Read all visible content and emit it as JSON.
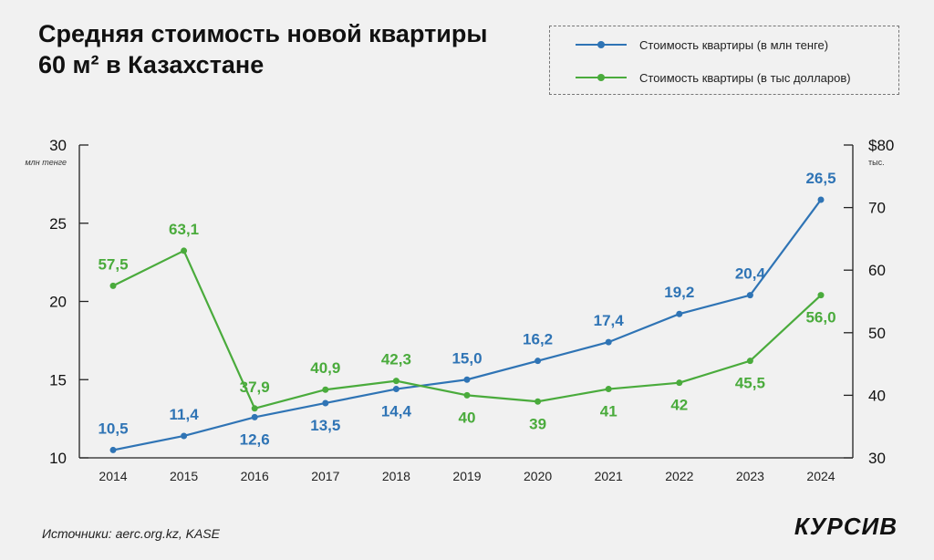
{
  "title": "Средняя стоимость новой квартиры 60 м² в Казахстане",
  "source": "Источники: aerc.org.kz, KASE",
  "logo": "КУРСИВ",
  "chart_data": {
    "type": "line",
    "title": "Средняя стоимость новой квартиры 60 м² в Казахстане",
    "categories": [
      "2014",
      "2015",
      "2016",
      "2017",
      "2018",
      "2019",
      "2020",
      "2021",
      "2022",
      "2023",
      "2024"
    ],
    "y_left": {
      "ylim": [
        10,
        30
      ],
      "ticks": [
        "10",
        "15",
        "20",
        "25",
        "30"
      ],
      "unit": "млн тенге"
    },
    "y_right": {
      "ylim": [
        30,
        80
      ],
      "ticks": [
        "30",
        "40",
        "50",
        "60",
        "70",
        "$80"
      ],
      "unit": "тыс."
    },
    "legend_placement": "top-right",
    "grid": false,
    "series": [
      {
        "name": "Стоимость квартиры (в млн тенге)",
        "axis": "left",
        "color": "#2f74b5",
        "values": [
          10.5,
          11.4,
          12.6,
          13.5,
          14.4,
          15.0,
          16.2,
          17.4,
          19.2,
          20.4,
          26.5
        ],
        "labels": [
          "10,5",
          "11,4",
          "12,6",
          "13,5",
          "14,4",
          "15,0",
          "16,2",
          "17,4",
          "19,2",
          "20,4",
          "26,5"
        ]
      },
      {
        "name": "Стоимость квартиры (в тыс долларов)",
        "axis": "right",
        "color": "#4aab3c",
        "values": [
          57.5,
          63.1,
          37.9,
          40.9,
          42.3,
          40,
          39,
          41,
          42,
          45.5,
          56.0
        ],
        "labels": [
          "57,5",
          "63,1",
          "37,9",
          "40,9",
          "42,3",
          "40",
          "39",
          "41",
          "42",
          "45,5",
          "56,0"
        ]
      }
    ]
  }
}
